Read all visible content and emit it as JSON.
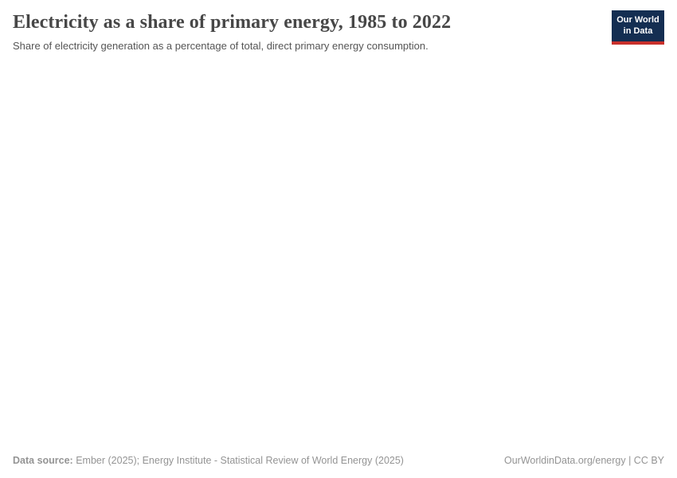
{
  "header": {
    "title": "Electricity as a share of primary energy, 1985 to 2022",
    "subtitle": "Share of electricity generation as a percentage of total, direct primary energy consumption.",
    "logo": {
      "line1": "Our World",
      "line2": "in Data",
      "bg_color": "#142e52",
      "accent_color": "#c8302b"
    }
  },
  "footer": {
    "source_label": "Data source:",
    "source_text": " Ember (2025); Energy Institute - Statistical Review of World Energy (2025)",
    "link_text": "OurWorldinData.org/energy | CC BY"
  },
  "chart_data": {
    "type": "line",
    "title": "Electricity as a share of primary energy, 1985 to 2022",
    "subtitle": "Share of electricity generation as a percentage of total, direct primary energy consumption.",
    "xlabel": "",
    "ylabel": "",
    "x_range": [
      1985,
      2022
    ],
    "series": [],
    "plot_area_rendered": false
  }
}
